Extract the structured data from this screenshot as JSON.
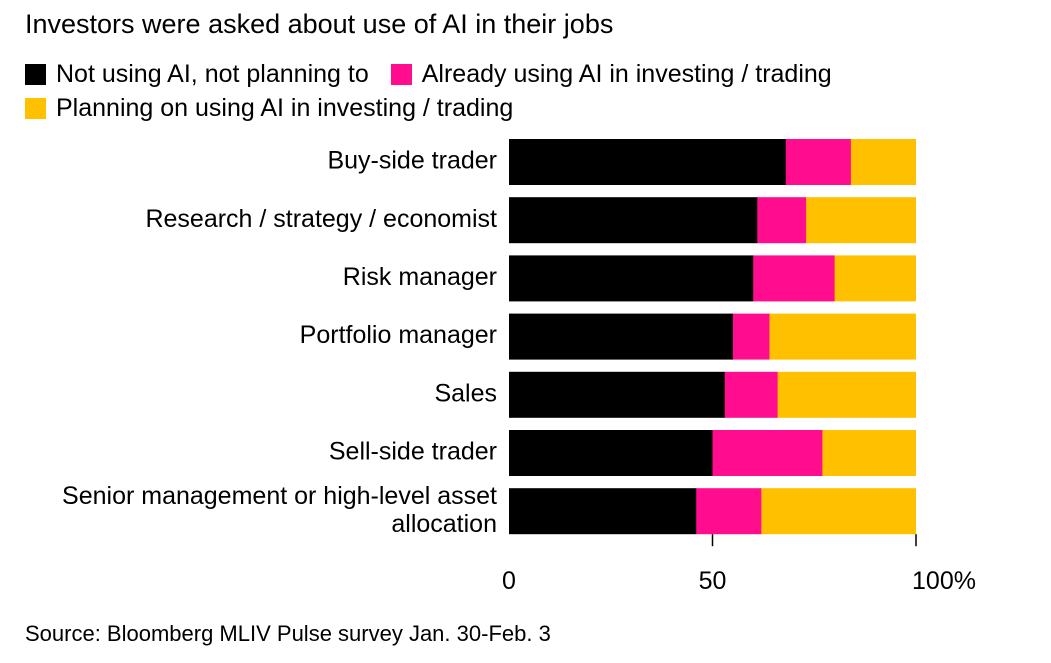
{
  "chart_data": {
    "type": "bar",
    "orientation": "horizontal",
    "stacked": true,
    "title": "Investors were asked about use of AI in their jobs",
    "categories": [
      "Buy-side trader",
      "Research / strategy / economist",
      "Risk manager",
      "Portfolio manager",
      "Sales",
      "Sell-side trader",
      "Senior management or high-level asset allocation"
    ],
    "category_lines": [
      [
        "Buy-side trader"
      ],
      [
        "Research / strategy / economist"
      ],
      [
        "Risk manager"
      ],
      [
        "Portfolio manager"
      ],
      [
        "Sales"
      ],
      [
        "Sell-side trader"
      ],
      [
        "Senior management or high-level asset",
        "allocation"
      ]
    ],
    "series": [
      {
        "name": "Not using AI, not planning to",
        "color": "#000000",
        "values": [
          68,
          61,
          60,
          55,
          53,
          50,
          46
        ]
      },
      {
        "name": "Already using AI in investing / trading",
        "color": "#ff0d8e",
        "values": [
          16,
          12,
          20,
          9,
          13,
          27,
          16
        ]
      },
      {
        "name": "Planning on using AI in investing / trading",
        "color": "#ffc000",
        "values": [
          16,
          27,
          20,
          36,
          34,
          23,
          38
        ]
      }
    ],
    "xlim": [
      0,
      100
    ],
    "xticks": [
      0,
      50,
      100
    ],
    "xtick_labels": [
      "0",
      "50",
      "100%"
    ],
    "xlabel": "",
    "ylabel": "",
    "legend_position": "top-left"
  },
  "source": "Source: Bloomberg MLIV Pulse survey Jan. 30-Feb. 3"
}
